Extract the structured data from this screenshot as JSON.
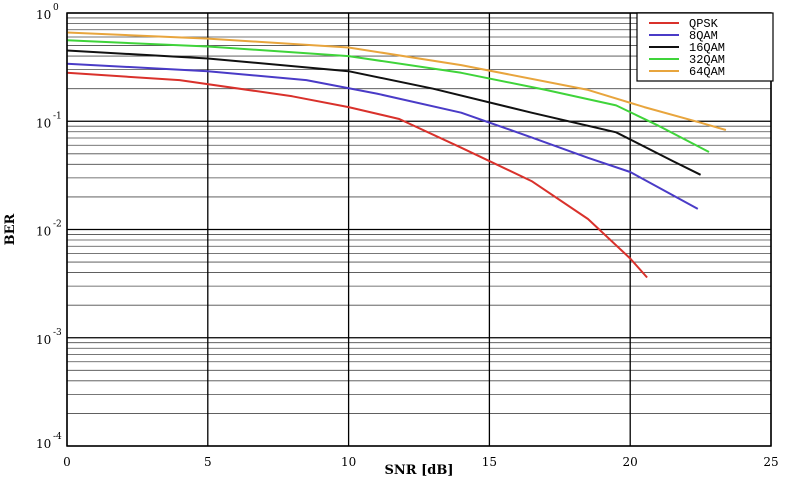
{
  "chart_data": {
    "type": "line",
    "xlabel": "SNR [dB]",
    "ylabel": "BER",
    "xlim": [
      0,
      25
    ],
    "ylim": [
      0.0001,
      1
    ],
    "yscale": "log",
    "xticks": [
      "0",
      "5",
      "10",
      "15",
      "20",
      "25"
    ],
    "yticks": [
      {
        "base": "10",
        "exp": "0"
      },
      {
        "base": "10",
        "exp": "-1"
      },
      {
        "base": "10",
        "exp": "-2"
      },
      {
        "base": "10",
        "exp": "-3"
      },
      {
        "base": "10",
        "exp": "-4"
      }
    ],
    "grid": true,
    "legend_position": "top-right",
    "series": [
      {
        "name": "QPSK",
        "color": "#d9312b",
        "x": [
          0,
          4,
          8,
          10,
          11.8,
          14,
          16.5,
          18.5,
          20,
          20.6
        ],
        "y": [
          0.28,
          0.24,
          0.17,
          0.135,
          0.105,
          0.057,
          0.028,
          0.0125,
          0.0054,
          0.0036
        ]
      },
      {
        "name": "8QAM",
        "color": "#4a3bc7",
        "x": [
          0,
          5,
          8.5,
          11,
          14,
          16.5,
          18.5,
          20,
          22.4
        ],
        "y": [
          0.34,
          0.29,
          0.24,
          0.18,
          0.12,
          0.071,
          0.046,
          0.034,
          0.0155
        ]
      },
      {
        "name": "16QAM",
        "color": "#111111",
        "x": [
          0,
          5,
          10,
          13,
          16.5,
          19.5,
          21.5,
          22.5
        ],
        "y": [
          0.45,
          0.38,
          0.29,
          0.2,
          0.12,
          0.079,
          0.043,
          0.032
        ]
      },
      {
        "name": "32QAM",
        "color": "#3fd43a",
        "x": [
          0,
          5,
          10,
          14,
          17,
          19.5,
          21,
          22.8
        ],
        "y": [
          0.56,
          0.49,
          0.4,
          0.28,
          0.195,
          0.14,
          0.091,
          0.052
        ]
      },
      {
        "name": "64QAM",
        "color": "#e8a53d",
        "x": [
          0,
          5,
          10,
          14,
          18.5,
          20.5,
          22.5,
          23.4
        ],
        "y": [
          0.66,
          0.58,
          0.48,
          0.33,
          0.195,
          0.135,
          0.097,
          0.083
        ]
      }
    ]
  }
}
